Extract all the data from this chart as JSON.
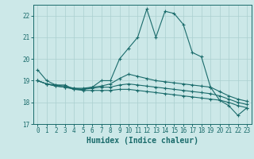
{
  "xlabel": "Humidex (Indice chaleur)",
  "background_color": "#cce8e8",
  "grid_color": "#aacfcf",
  "line_color": "#1a6b6b",
  "xlim": [
    -0.5,
    23.5
  ],
  "ylim": [
    17,
    22.5
  ],
  "yticks": [
    17,
    18,
    19,
    20,
    21,
    22
  ],
  "xticks": [
    0,
    1,
    2,
    3,
    4,
    5,
    6,
    7,
    8,
    9,
    10,
    11,
    12,
    13,
    14,
    15,
    16,
    17,
    18,
    19,
    20,
    21,
    22,
    23
  ],
  "series": [
    [
      19.5,
      19.0,
      18.8,
      18.8,
      18.6,
      18.6,
      18.7,
      19.0,
      19.0,
      20.0,
      20.5,
      21.0,
      22.3,
      21.0,
      22.2,
      22.1,
      21.6,
      20.3,
      20.1,
      18.7,
      18.1,
      17.85,
      17.4,
      17.75
    ],
    [
      19.0,
      18.85,
      18.8,
      18.75,
      18.65,
      18.65,
      18.7,
      18.75,
      18.85,
      19.1,
      19.3,
      19.2,
      19.1,
      19.0,
      18.95,
      18.9,
      18.85,
      18.8,
      18.75,
      18.7,
      18.5,
      18.3,
      18.15,
      18.05
    ],
    [
      19.0,
      18.85,
      18.75,
      18.7,
      18.65,
      18.6,
      18.65,
      18.7,
      18.7,
      18.8,
      18.85,
      18.8,
      18.75,
      18.7,
      18.65,
      18.6,
      18.55,
      18.5,
      18.45,
      18.4,
      18.3,
      18.15,
      18.0,
      17.9
    ],
    [
      19.0,
      18.85,
      18.75,
      18.7,
      18.6,
      18.55,
      18.55,
      18.55,
      18.55,
      18.6,
      18.6,
      18.55,
      18.5,
      18.45,
      18.4,
      18.35,
      18.3,
      18.25,
      18.2,
      18.15,
      18.1,
      18.0,
      17.85,
      17.75
    ]
  ]
}
